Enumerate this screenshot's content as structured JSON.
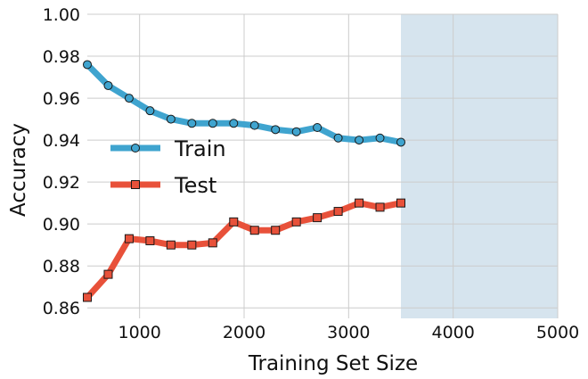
{
  "chart_data": {
    "type": "line",
    "xlabel": "Training Set Size",
    "ylabel": "Accuracy",
    "xlim": [
      500,
      5000
    ],
    "ylim": [
      0.855,
      1.0
    ],
    "xticks": [
      1000,
      2000,
      3000,
      4000,
      5000
    ],
    "yticks": [
      0.86,
      0.88,
      0.9,
      0.92,
      0.94,
      0.96,
      0.98,
      1.0
    ],
    "xtick_labels": [
      "1000",
      "2000",
      "3000",
      "4000",
      "5000"
    ],
    "ytick_labels": [
      "0.86",
      "0.88",
      "0.90",
      "0.92",
      "0.94",
      "0.96",
      "0.98",
      "1.00"
    ],
    "grid": true,
    "legend_position": "center-left",
    "shaded_region": {
      "x_start": 3500,
      "x_end": 5000,
      "color": "#d6e4ee"
    },
    "x": [
      500,
      700,
      900,
      1100,
      1300,
      1500,
      1700,
      1900,
      2100,
      2300,
      2500,
      2700,
      2900,
      3100,
      3300,
      3500
    ],
    "series": [
      {
        "name": "Train",
        "color": "#3fa4cf",
        "marker": "circle",
        "values": [
          0.976,
          0.966,
          0.96,
          0.954,
          0.95,
          0.948,
          0.948,
          0.948,
          0.947,
          0.945,
          0.944,
          0.946,
          0.941,
          0.94,
          0.941,
          0.939
        ]
      },
      {
        "name": "Test",
        "color": "#e8513a",
        "marker": "square",
        "values": [
          0.865,
          0.876,
          0.893,
          0.892,
          0.89,
          0.89,
          0.891,
          0.901,
          0.897,
          0.897,
          0.901,
          0.903,
          0.906,
          0.91,
          0.908,
          0.91
        ]
      }
    ]
  }
}
